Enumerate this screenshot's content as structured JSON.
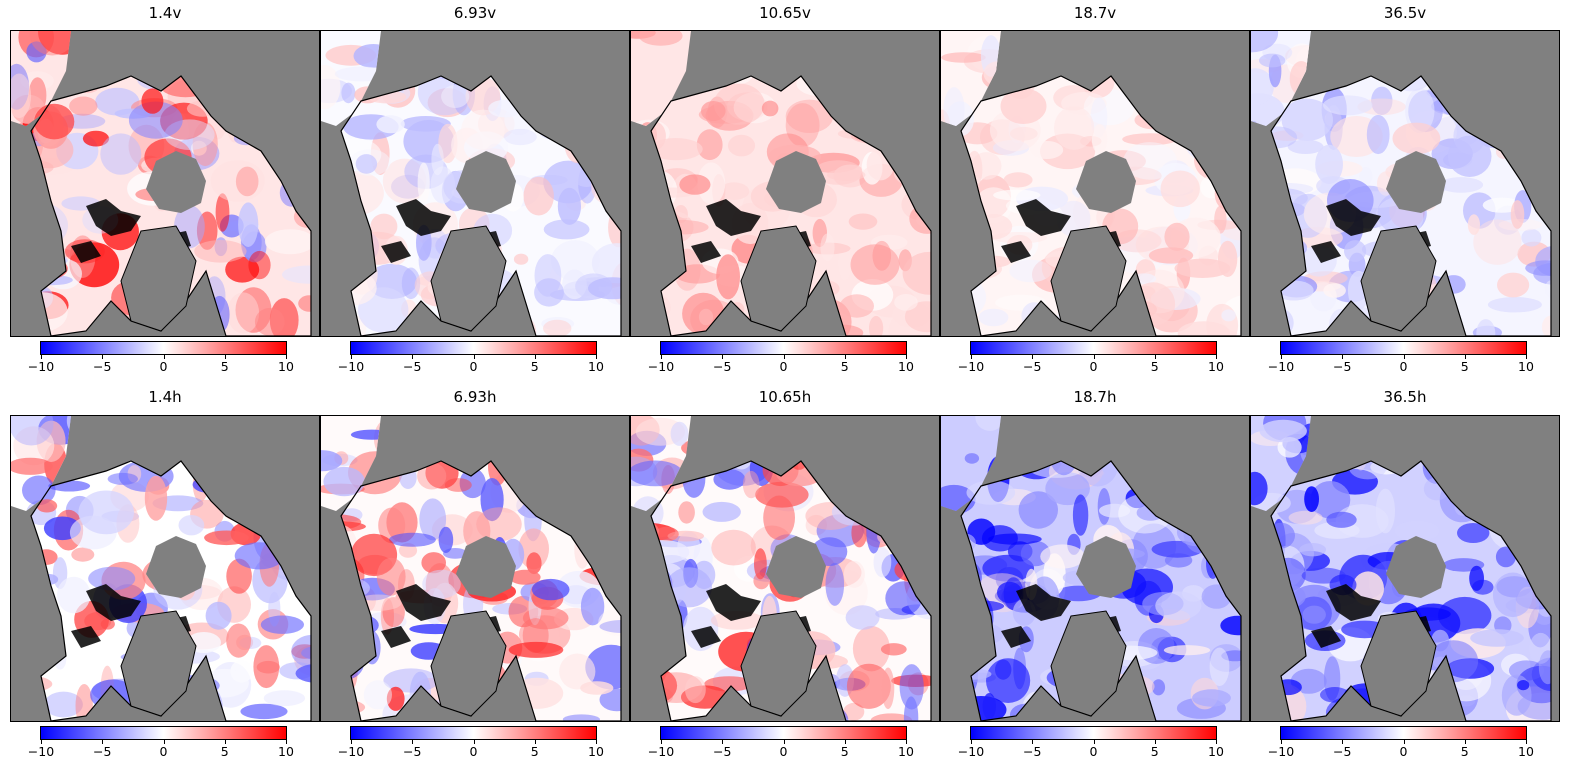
{
  "colorbar": {
    "ticks": [
      "−10",
      "−5",
      "0",
      "5",
      "10"
    ],
    "colors": {
      "low": "#0000ff",
      "mid": "#ffffff",
      "high": "#ff0000"
    }
  },
  "colors": {
    "land": "#808080",
    "coast": "#000000"
  },
  "panels": [
    {
      "title": "1.4v",
      "bias": 0.25,
      "strength": 0.9
    },
    {
      "title": "6.93v",
      "bias": -0.05,
      "strength": 0.3
    },
    {
      "title": "10.65v",
      "bias": 0.25,
      "strength": 0.25
    },
    {
      "title": "18.7v",
      "bias": 0.1,
      "strength": 0.2
    },
    {
      "title": "36.5v",
      "bias": -0.1,
      "strength": 0.35
    },
    {
      "title": "1.4h",
      "bias": 0.0,
      "strength": 0.8
    },
    {
      "title": "6.93h",
      "bias": 0.05,
      "strength": 0.85
    },
    {
      "title": "10.65h",
      "bias": 0.05,
      "strength": 0.9
    },
    {
      "title": "18.7h",
      "bias": -0.5,
      "strength": 0.7
    },
    {
      "title": "36.5h",
      "bias": -0.45,
      "strength": 0.6
    }
  ]
}
